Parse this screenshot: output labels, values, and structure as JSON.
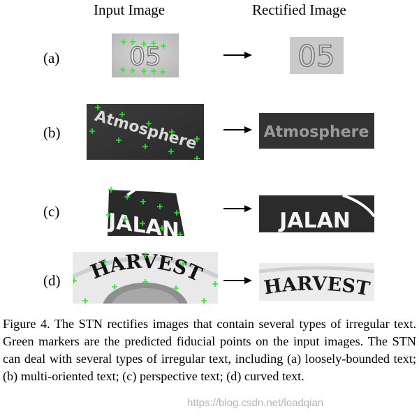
{
  "headers": {
    "input": "Input Image",
    "rectified": "Rectified Image"
  },
  "rows": [
    {
      "label": "(a)",
      "input_text": "05",
      "rectified_text": "05"
    },
    {
      "label": "(b)",
      "input_text": "Atmosphere",
      "rectified_text": "Atmosphere"
    },
    {
      "label": "(c)",
      "input_text": "JALAN",
      "rectified_text": "JALAN"
    },
    {
      "label": "(d)",
      "input_text": "HARVEST",
      "rectified_text": "HARVEST"
    }
  ],
  "caption": {
    "text": "Figure 4. The STN rectifies images that contain several types of irregular text. Green markers are the predicted fiducial points on the input images. The STN can deal with several types of irregular text, including (a) loosely-bounded text; (b) multi-oriented text; (c) perspective text; (d) curved text."
  },
  "watermark": "https://blog.csdn.net/loadqian",
  "colors": {
    "marker": "#22ee22",
    "text": "#000000"
  }
}
